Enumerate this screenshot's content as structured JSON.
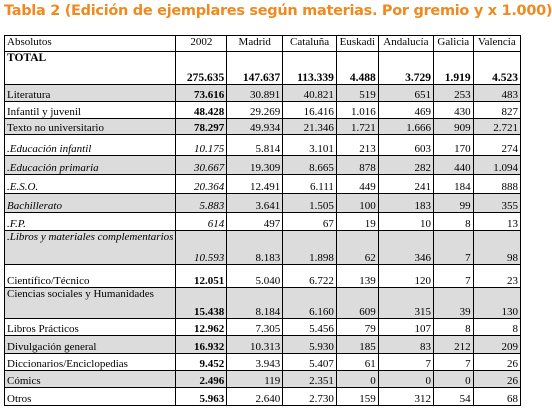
{
  "title": "Tabla 2 (Edición de ejemplares según materias. Por gremio y x 1.000)",
  "headers": [
    "Absolutos",
    "2002",
    "Madrid",
    "Cataluña",
    "Euskadi",
    "Andalucía",
    "Galicia",
    "Valencia"
  ],
  "rows": [
    {
      "label": "TOTAL",
      "values": [
        "275.635",
        "147.637",
        "113.339",
        "4.488",
        "3.729",
        "1.919",
        "4.523"
      ]
    },
    {
      "label": "Literatura",
      "values": [
        "73.616",
        "30.891",
        "40.821",
        "519",
        "651",
        "253",
        "483"
      ]
    },
    {
      "label": "Infantil y juvenil",
      "values": [
        "48.428",
        "29.269",
        "16.416",
        "1.016",
        "469",
        "430",
        "827"
      ]
    },
    {
      "label": "Texto no universitario",
      "values": [
        "78.297",
        "49.934",
        "21.346",
        "1.721",
        "1.666",
        "909",
        "2.721"
      ]
    },
    {
      "label": ".Educación infantil",
      "values": [
        "10.175",
        "5.814",
        "3.101",
        "213",
        "603",
        "170",
        "274"
      ]
    },
    {
      "label": ".Educación primaria",
      "values": [
        "30.667",
        "19.309",
        "8.665",
        "878",
        "282",
        "440",
        "1.094"
      ]
    },
    {
      "label": ".E.S.O.",
      "values": [
        "20.364",
        "12.491",
        "6.111",
        "449",
        "241",
        "184",
        "888"
      ]
    },
    {
      "label": "Bachillerato",
      "values": [
        "5.883",
        "3.641",
        "1.505",
        "100",
        "183",
        "99",
        "355"
      ]
    },
    {
      "label": ".F.P.",
      "values": [
        "614",
        "497",
        "67",
        "19",
        "10",
        "8",
        "13"
      ]
    },
    {
      "label": ".Libros y materiales complementarios",
      "values": [
        "10.593",
        "8.183",
        "1.898",
        "62",
        "346",
        "7",
        "98"
      ]
    },
    {
      "label": "Científico/Técnico",
      "values": [
        "12.051",
        "5.040",
        "6.722",
        "139",
        "120",
        "7",
        "23"
      ]
    },
    {
      "label": "Ciencias sociales y Humanidades",
      "values": [
        "15.438",
        "8.184",
        "6.160",
        "609",
        "315",
        "39",
        "130"
      ]
    },
    {
      "label": "Libros Prácticos",
      "values": [
        "12.962",
        "7.305",
        "5.456",
        "79",
        "107",
        "8",
        "8"
      ]
    },
    {
      "label": "Divulgación general",
      "values": [
        "16.932",
        "10.313",
        "5.930",
        "185",
        "83",
        "212",
        "209"
      ]
    },
    {
      "label": "Diccionarios/Enciclopedias",
      "values": [
        "9.452",
        "3.943",
        "5.407",
        "61",
        "7",
        "7",
        "26"
      ]
    },
    {
      "label": "Cómics",
      "values": [
        "2.496",
        "119",
        "2.351",
        "0",
        "0",
        "0",
        "26"
      ]
    },
    {
      "label": "Otros",
      "values": [
        "5.963",
        "2.640",
        "2.730",
        "159",
        "312",
        "54",
        "68"
      ]
    }
  ]
}
